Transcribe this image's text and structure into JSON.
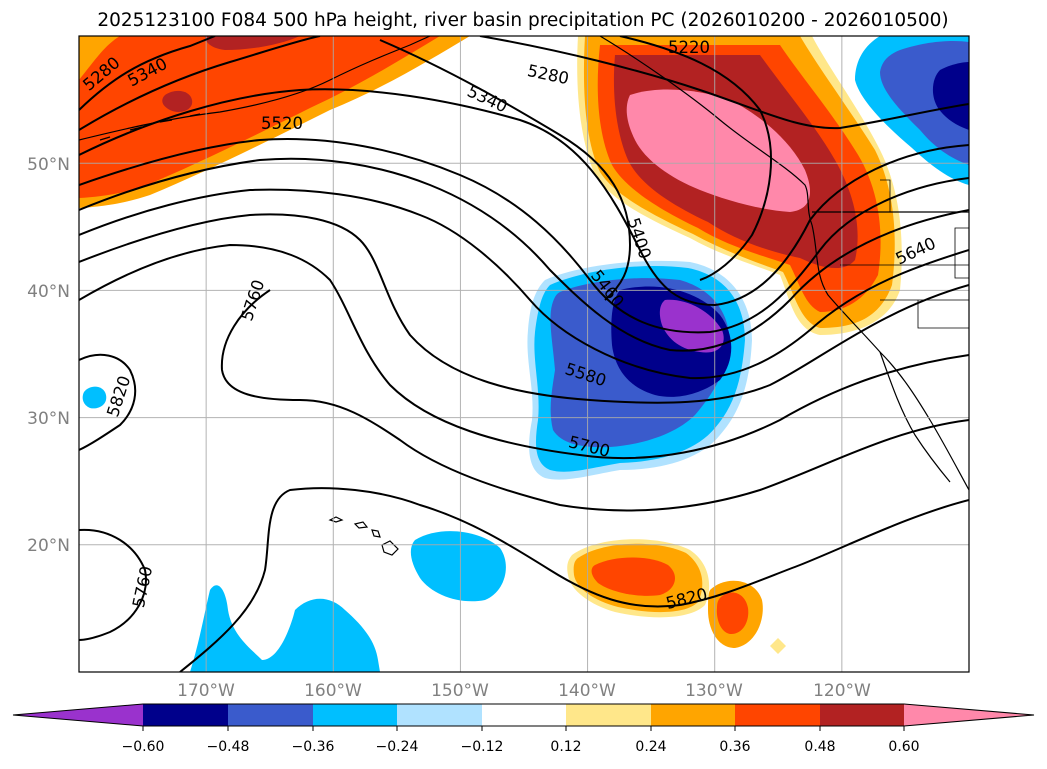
{
  "title": "2025123100 F084 500 hPa height, river basin precipitation PC (2026010200 - 2026010500)",
  "map": {
    "lat_labels": [
      "50°N",
      "40°N",
      "30°N",
      "20°N"
    ],
    "lon_labels": [
      "170°W",
      "160°W",
      "150°W",
      "140°W",
      "130°W",
      "120°W"
    ],
    "grid_lats": [
      50,
      40,
      30,
      20
    ],
    "grid_lons": [
      -170,
      -160,
      -150,
      -140,
      -130,
      -120
    ],
    "extent": {
      "lon_min": -180,
      "lon_max": -110,
      "lat_min": 10,
      "lat_max": 60
    }
  },
  "contour_labels": [
    {
      "id": "west-5280",
      "text": "5280"
    },
    {
      "id": "west-5340",
      "text": "5340"
    },
    {
      "id": "5520",
      "text": "5520"
    },
    {
      "id": "north-5220",
      "text": "5220"
    },
    {
      "id": "north-5280",
      "text": "5280"
    },
    {
      "id": "north-5340",
      "text": "5340"
    },
    {
      "id": "5400",
      "text": "5400"
    },
    {
      "id": "5460",
      "text": "5460"
    },
    {
      "id": "5580",
      "text": "5580"
    },
    {
      "id": "5700",
      "text": "5700"
    },
    {
      "id": "5640",
      "text": "5640"
    },
    {
      "id": "5760",
      "text": "5760"
    },
    {
      "id": "5820",
      "text": "5820"
    },
    {
      "id": "south-5760",
      "text": "5760"
    },
    {
      "id": "south-5820",
      "text": "5820"
    }
  ],
  "colorbar": {
    "levels": [
      "−0.60",
      "−0.48",
      "−0.36",
      "−0.24",
      "−0.12",
      "0.12",
      "0.24",
      "0.36",
      "0.48",
      "0.60"
    ],
    "colors": {
      "under": "#9a32cd",
      "c1": "#00008b",
      "c2": "#3a5bcc",
      "c3": "#00bfff",
      "c4": "#b0e2ff",
      "c5": "#ffffff",
      "c6": "#ffe78a",
      "c7": "#ffa500",
      "c8": "#ff4500",
      "c9": "#b22222",
      "over": "#ff88aa"
    }
  }
}
